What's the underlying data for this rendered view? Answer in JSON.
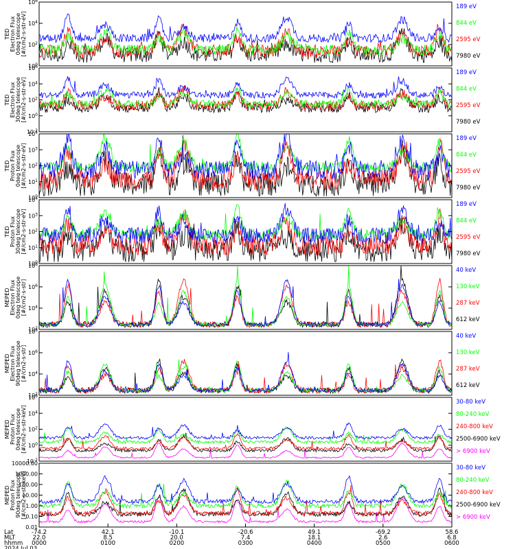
{
  "colors": {
    "blue": "#0000ff",
    "red": "#ff0000",
    "green": "#00ff00",
    "black": "#000000",
    "magenta": "#ff00ff"
  },
  "x_axis": {
    "row_labels": [
      "Lat",
      "MLT",
      "hhmm",
      "2024 Jul 03"
    ],
    "ticks": [
      {
        "lat": "-74.2",
        "mlt": "22.0",
        "hhmm": "0000"
      },
      {
        "lat": "42.1",
        "mlt": "8.5",
        "hhmm": "0100"
      },
      {
        "lat": "-10.1",
        "mlt": "20.0",
        "hhmm": "0200"
      },
      {
        "lat": "-20.6",
        "mlt": "7.4",
        "hhmm": "0300"
      },
      {
        "lat": "49.1",
        "mlt": "18.1",
        "hhmm": "0400"
      },
      {
        "lat": "-69.2",
        "mlt": "2.6",
        "hhmm": "0500"
      },
      {
        "lat": "58.6",
        "mlt": "6.8",
        "hhmm": "0600"
      }
    ]
  },
  "chart_data": [
    {
      "type": "line",
      "ylabel": [
        "TED",
        "Electron Flux",
        "0deg telescope",
        "[#/cm2-s-str-eV]"
      ],
      "yticks": [
        "10^0",
        "10^2",
        "10^4",
        "10^6"
      ],
      "ylim_exp": [
        0,
        6
      ],
      "tick_style": "pow",
      "series": [
        {
          "name": "7980 eV",
          "color": "black",
          "base": 1.0,
          "spread": 0.7
        },
        {
          "name": "2595 eV",
          "color": "red",
          "base": 1.4,
          "spread": 0.6
        },
        {
          "name": "844 eV",
          "color": "green",
          "base": 1.5,
          "spread": 0.5
        },
        {
          "name": "189 eV",
          "color": "blue",
          "base": 2.6,
          "spread": 0.4
        }
      ],
      "peak": 2.0
    },
    {
      "type": "line",
      "ylabel": [
        "TED",
        "Electron Flux",
        "30deg telescope",
        "[#/cm2-s-str-eV]"
      ],
      "yticks": [
        "10^-2",
        "10^0",
        "10^2",
        "10^4",
        "10^6"
      ],
      "ylim_exp": [
        -2,
        6
      ],
      "tick_style": "pow",
      "series": [
        {
          "name": "7980 eV",
          "color": "black",
          "base": 1.0,
          "spread": 0.6
        },
        {
          "name": "2595 eV",
          "color": "red",
          "base": 1.3,
          "spread": 0.6
        },
        {
          "name": "844 eV",
          "color": "green",
          "base": 1.5,
          "spread": 0.5
        },
        {
          "name": "189 eV",
          "color": "blue",
          "base": 2.6,
          "spread": 0.4
        }
      ],
      "peak": 2.0
    },
    {
      "type": "line",
      "ylabel": [
        "TED",
        "Proton Flux",
        "0deg telescope",
        "[#/cm2-s-str-eV]"
      ],
      "yticks": [
        "10^0",
        "10^1",
        "10^2",
        "10^3",
        "10^4"
      ],
      "ylim_exp": [
        -0.3,
        4.5
      ],
      "tick_style": "pow",
      "series": [
        {
          "name": "7980 eV",
          "color": "black",
          "base": 0.7,
          "spread": 0.9
        },
        {
          "name": "2595 eV",
          "color": "red",
          "base": 1.1,
          "spread": 0.8
        },
        {
          "name": "844 eV",
          "color": "green",
          "base": 2.0,
          "spread": 0.4
        },
        {
          "name": "189 eV",
          "color": "blue",
          "base": 1.8,
          "spread": 0.7
        }
      ],
      "peak": 2.5
    },
    {
      "type": "line",
      "ylabel": [
        "TED",
        "Proton Flux",
        "30deg telescope",
        "[#/cm2-s-str-eV]"
      ],
      "yticks": [
        "10^0",
        "10^1",
        "10^2",
        "10^3",
        "10^4"
      ],
      "ylim_exp": [
        -0.3,
        4.5
      ],
      "tick_style": "pow",
      "series": [
        {
          "name": "7980 eV",
          "color": "black",
          "base": 0.7,
          "spread": 0.9
        },
        {
          "name": "2595 eV",
          "color": "red",
          "base": 1.1,
          "spread": 0.8
        },
        {
          "name": "844 eV",
          "color": "green",
          "base": 1.9,
          "spread": 0.4
        },
        {
          "name": "189 eV",
          "color": "blue",
          "base": 1.8,
          "spread": 0.6
        }
      ],
      "peak": 2.0
    },
    {
      "type": "line",
      "ylabel": [
        "MEPED",
        "Electron Flux",
        "0deg telescope",
        "[#/cm2-s-str]"
      ],
      "yticks": [
        "10^2",
        "10^4",
        "10^6",
        "10^8"
      ],
      "ylim_exp": [
        1.5,
        8
      ],
      "tick_style": "pow",
      "series": [
        {
          "name": "612 keV",
          "color": "black",
          "base": 2.0,
          "spread": 0.3
        },
        {
          "name": "287 keV",
          "color": "red",
          "base": 2.0,
          "spread": 0.3
        },
        {
          "name": "130 keV",
          "color": "green",
          "base": 2.0,
          "spread": 0.2
        },
        {
          "name": "40 keV",
          "color": "blue",
          "base": 2.0,
          "spread": 0.2
        }
      ],
      "peak": 4.5
    },
    {
      "type": "line",
      "ylabel": [
        "MEPED",
        "Electron Flux",
        "90deg telescope",
        "[#/cm2-s-str]"
      ],
      "yticks": [
        "10^2",
        "10^4",
        "10^6",
        "10^8"
      ],
      "ylim_exp": [
        1.5,
        8
      ],
      "tick_style": "pow",
      "series": [
        {
          "name": "612 keV",
          "color": "black",
          "base": 2.0,
          "spread": 0.3
        },
        {
          "name": "287 keV",
          "color": "red",
          "base": 2.0,
          "spread": 0.3
        },
        {
          "name": "130 keV",
          "color": "green",
          "base": 2.0,
          "spread": 0.2
        },
        {
          "name": "40 keV",
          "color": "blue",
          "base": 2.0,
          "spread": 0.2
        }
      ],
      "peak": 3.0
    },
    {
      "type": "line",
      "ylabel": [
        "MEPED",
        "Proton Flux",
        "0deg telescope",
        "[#/cm2-s-str-keV]"
      ],
      "yticks": [
        "10^-2",
        "10^0",
        "10^2",
        "10^4",
        "10^6"
      ],
      "ylim_exp": [
        -3,
        6
      ],
      "tick_style": "pow",
      "series": [
        {
          "name": "> 6900 keV",
          "color": "magenta",
          "base": -2.5,
          "spread": 0.1
        },
        {
          "name": "2500-6900 keV",
          "color": "black",
          "base": -1.5,
          "spread": 0.2
        },
        {
          "name": "240-800 keV",
          "color": "red",
          "base": -1.2,
          "spread": 0.2
        },
        {
          "name": "80-240 keV",
          "color": "green",
          "base": -0.3,
          "spread": 0.2
        },
        {
          "name": "30-80 keV",
          "color": "blue",
          "base": 0.3,
          "spread": 0.2
        }
      ],
      "peak": 2.0
    },
    {
      "type": "line",
      "ylabel": [
        "MEPED",
        "Proton Flux",
        "90deg telescope",
        "[#/cm2-s-str-keV]"
      ],
      "yticks": [
        "0.01",
        "0.10",
        "1.00",
        "10.00",
        "100.00",
        "1000.00",
        "10000.00"
      ],
      "ylim_exp": [
        -2,
        4
      ],
      "tick_style": "plain",
      "series": [
        {
          "name": "> 6900 keV",
          "color": "magenta",
          "base": -1.5,
          "spread": 0.1
        },
        {
          "name": "2500-6900 keV",
          "color": "black",
          "base": -0.8,
          "spread": 0.2
        },
        {
          "name": "240-800 keV",
          "color": "red",
          "base": -0.7,
          "spread": 0.2
        },
        {
          "name": "80-240 keV",
          "color": "green",
          "base": 0.0,
          "spread": 0.2
        },
        {
          "name": "30-80 keV",
          "color": "blue",
          "base": 0.4,
          "spread": 0.2
        }
      ],
      "peak": 2.3
    }
  ]
}
